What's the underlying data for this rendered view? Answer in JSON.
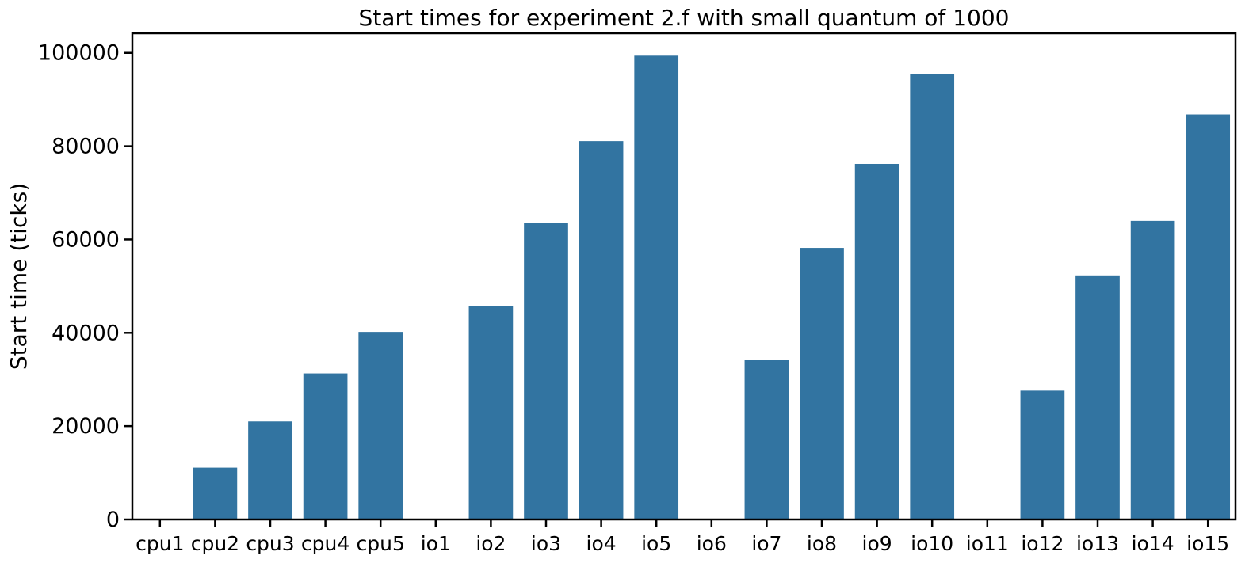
{
  "chart_data": {
    "type": "bar",
    "title": "Start times for experiment 2.f with small quantum of 1000",
    "xlabel": "",
    "ylabel": "Start time (ticks)",
    "categories": [
      "cpu1",
      "cpu2",
      "cpu3",
      "cpu4",
      "cpu5",
      "io1",
      "io2",
      "io3",
      "io4",
      "io5",
      "io6",
      "io7",
      "io8",
      "io9",
      "io10",
      "io11",
      "io12",
      "io13",
      "io14",
      "io15"
    ],
    "values": [
      0,
      11100,
      21000,
      31300,
      40200,
      0,
      45700,
      63600,
      81100,
      99400,
      0,
      34200,
      58200,
      76200,
      95500,
      0,
      27600,
      52300,
      64000,
      86800
    ],
    "ylim": [
      0,
      104200
    ],
    "yticks": [
      0,
      20000,
      40000,
      60000,
      80000,
      100000
    ],
    "ytick_labels": [
      "0",
      "20000",
      "40000",
      "60000",
      "80000",
      "100000"
    ],
    "bar_color": "#3274a1",
    "grid": false,
    "legend": "none"
  }
}
